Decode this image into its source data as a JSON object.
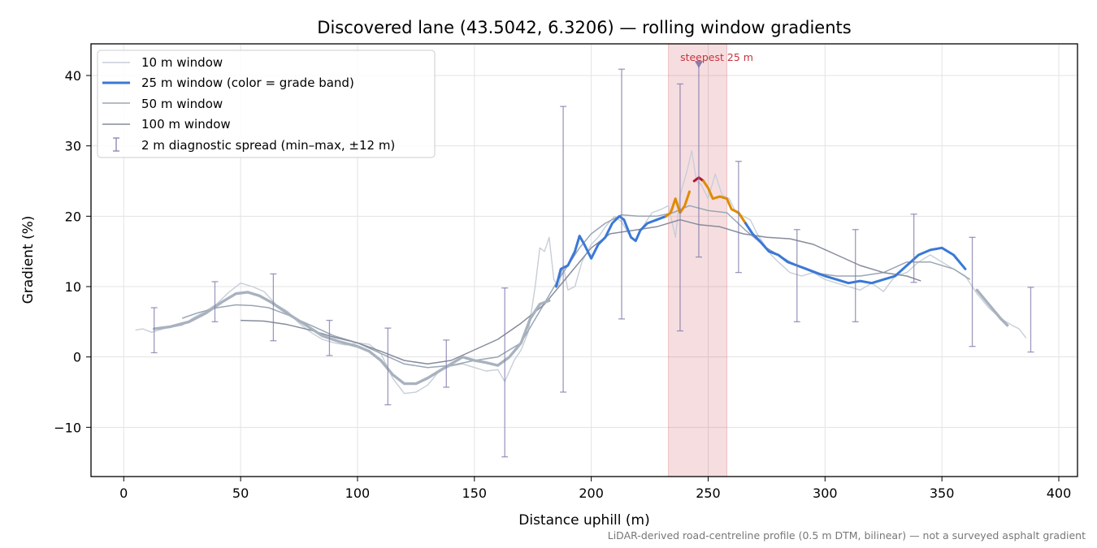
{
  "chart_data": {
    "type": "line",
    "title": "Discovered lane (43.5042, 6.3206) — rolling window gradients",
    "xlabel": "Distance uphill (m)",
    "ylabel": "Gradient (%)",
    "footnote": "LiDAR-derived road-centreline profile (0.5 m DTM, bilinear) — not a surveyed asphalt gradient",
    "xlim": [
      -14,
      408
    ],
    "ylim": [
      -17,
      44.5
    ],
    "x_ticks": [
      0,
      50,
      100,
      150,
      200,
      250,
      300,
      350,
      400
    ],
    "y_ticks": [
      -10,
      0,
      10,
      20,
      30,
      40
    ],
    "y_tick_labels": [
      "−10",
      "0",
      "10",
      "20",
      "30",
      "40"
    ],
    "grid": true,
    "legend_position": "top-left",
    "grade_band_colors": {
      "low": "#a8b2bf",
      "mid": "#3a78d6",
      "high": "#e08a00",
      "steep": "#b5172d"
    },
    "steepest": {
      "label": "steepest 25 m",
      "span": [
        233,
        258
      ],
      "x": 246,
      "y": 41.5,
      "color": "#c8323c"
    },
    "series": [
      {
        "name": "10 m window",
        "color": "#c7ced8",
        "points": [
          [
            5,
            3.8
          ],
          [
            8,
            4.0
          ],
          [
            12,
            3.5
          ],
          [
            18,
            4.1
          ],
          [
            25,
            4.5
          ],
          [
            30,
            5.6
          ],
          [
            35,
            6.5
          ],
          [
            40,
            7.6
          ],
          [
            45,
            9.2
          ],
          [
            50,
            10.5
          ],
          [
            55,
            10.0
          ],
          [
            60,
            9.3
          ],
          [
            65,
            7.5
          ],
          [
            70,
            6.5
          ],
          [
            75,
            4.8
          ],
          [
            80,
            3.5
          ],
          [
            85,
            2.5
          ],
          [
            90,
            2.0
          ],
          [
            95,
            1.7
          ],
          [
            100,
            2.0
          ],
          [
            105,
            1.8
          ],
          [
            110,
            0.5
          ],
          [
            115,
            -3.0
          ],
          [
            120,
            -5.2
          ],
          [
            125,
            -5.0
          ],
          [
            130,
            -4.0
          ],
          [
            135,
            -2.0
          ],
          [
            140,
            -1.3
          ],
          [
            145,
            -1.0
          ],
          [
            150,
            -1.5
          ],
          [
            155,
            -2.0
          ],
          [
            160,
            -1.8
          ],
          [
            163,
            -3.5
          ],
          [
            167,
            -0.5
          ],
          [
            170,
            1.0
          ],
          [
            173,
            3.5
          ],
          [
            176,
            10.0
          ],
          [
            178,
            15.5
          ],
          [
            180,
            15.0
          ],
          [
            182,
            17.0
          ],
          [
            184,
            11.0
          ],
          [
            186,
            10.0
          ],
          [
            188,
            13.0
          ],
          [
            190,
            9.5
          ],
          [
            193,
            10.0
          ],
          [
            196,
            13.5
          ],
          [
            200,
            16.0
          ],
          [
            203,
            17.0
          ],
          [
            206,
            18.5
          ],
          [
            210,
            20.0
          ],
          [
            213,
            19.2
          ],
          [
            216,
            17.5
          ],
          [
            219,
            16.5
          ],
          [
            222,
            18.5
          ],
          [
            226,
            20.5
          ],
          [
            230,
            21.0
          ],
          [
            233,
            21.5
          ],
          [
            236,
            17.0
          ],
          [
            238,
            23.0
          ],
          [
            241,
            26.5
          ],
          [
            243,
            29.3
          ],
          [
            245,
            25.0
          ],
          [
            247,
            24.5
          ],
          [
            250,
            22.5
          ],
          [
            253,
            26.0
          ],
          [
            256,
            23.0
          ],
          [
            259,
            22.5
          ],
          [
            262,
            20.5
          ],
          [
            265,
            20.0
          ],
          [
            268,
            19.5
          ],
          [
            271,
            17.5
          ],
          [
            274,
            16.0
          ],
          [
            277,
            14.5
          ],
          [
            280,
            13.5
          ],
          [
            285,
            12.0
          ],
          [
            290,
            11.5
          ],
          [
            295,
            12.0
          ],
          [
            300,
            11.0
          ],
          [
            305,
            10.5
          ],
          [
            310,
            10.0
          ],
          [
            315,
            9.5
          ],
          [
            320,
            10.5
          ],
          [
            325,
            9.3
          ],
          [
            330,
            11.5
          ],
          [
            335,
            12.0
          ],
          [
            340,
            13.5
          ],
          [
            345,
            14.5
          ],
          [
            350,
            13.5
          ],
          [
            355,
            12.5
          ],
          [
            360,
            11.5
          ],
          [
            365,
            9.0
          ],
          [
            370,
            7.0
          ],
          [
            375,
            5.5
          ],
          [
            380,
            4.5
          ],
          [
            383,
            4.0
          ],
          [
            386,
            2.7
          ]
        ]
      },
      {
        "name": "25 m window (color = grade band)",
        "color": "#3a78d6",
        "points": [
          [
            13,
            4.0
          ],
          [
            20,
            4.3
          ],
          [
            28,
            5.0
          ],
          [
            35,
            6.2
          ],
          [
            42,
            7.8
          ],
          [
            48,
            9.0
          ],
          [
            53,
            9.2
          ],
          [
            58,
            8.7
          ],
          [
            63,
            7.8
          ],
          [
            70,
            6.2
          ],
          [
            78,
            4.5
          ],
          [
            85,
            3.0
          ],
          [
            92,
            2.2
          ],
          [
            100,
            1.5
          ],
          [
            105,
            0.8
          ],
          [
            110,
            -0.5
          ],
          [
            115,
            -2.5
          ],
          [
            120,
            -3.8
          ],
          [
            125,
            -3.8
          ],
          [
            130,
            -3.0
          ],
          [
            135,
            -2.0
          ],
          [
            140,
            -1.0
          ],
          [
            145,
            0.0
          ],
          [
            150,
            -0.5
          ],
          [
            155,
            -0.8
          ],
          [
            160,
            -1.2
          ],
          [
            165,
            0.0
          ],
          [
            170,
            2.0
          ],
          [
            174,
            5.5
          ],
          [
            178,
            7.5
          ],
          [
            182,
            8.0
          ],
          [
            185,
            10.0
          ],
          [
            187,
            12.5
          ],
          [
            190,
            13.0
          ],
          [
            193,
            15.0
          ],
          [
            195,
            17.2
          ],
          [
            197,
            16.0
          ],
          [
            200,
            14.0
          ],
          [
            203,
            16.0
          ],
          [
            206,
            17.0
          ],
          [
            209,
            19.0
          ],
          [
            212,
            20.0
          ],
          [
            214,
            19.5
          ],
          [
            217,
            17.0
          ],
          [
            219,
            16.5
          ],
          [
            221,
            18.0
          ],
          [
            224,
            19.0
          ],
          [
            228,
            19.5
          ],
          [
            232,
            20.0
          ],
          [
            234,
            20.5
          ],
          [
            236,
            22.5
          ],
          [
            238,
            20.5
          ],
          [
            240,
            21.5
          ],
          [
            242,
            23.5
          ],
          [
            244,
            25.0
          ],
          [
            246,
            25.5
          ],
          [
            248,
            25.0
          ],
          [
            250,
            24.0
          ],
          [
            252,
            22.5
          ],
          [
            255,
            22.8
          ],
          [
            258,
            22.5
          ],
          [
            260,
            21.0
          ],
          [
            263,
            20.5
          ],
          [
            266,
            19.0
          ],
          [
            269,
            17.5
          ],
          [
            272,
            16.5
          ],
          [
            276,
            15.0
          ],
          [
            280,
            14.5
          ],
          [
            284,
            13.5
          ],
          [
            288,
            13.0
          ],
          [
            292,
            12.5
          ],
          [
            296,
            12.0
          ],
          [
            300,
            11.5
          ],
          [
            305,
            11.0
          ],
          [
            310,
            10.5
          ],
          [
            315,
            10.8
          ],
          [
            320,
            10.5
          ],
          [
            325,
            11.0
          ],
          [
            330,
            11.5
          ],
          [
            335,
            13.0
          ],
          [
            340,
            14.5
          ],
          [
            345,
            15.2
          ],
          [
            350,
            15.5
          ],
          [
            355,
            14.5
          ],
          [
            360,
            12.5
          ],
          [
            365,
            9.5
          ],
          [
            370,
            7.5
          ],
          [
            375,
            5.5
          ],
          [
            378,
            4.5
          ]
        ],
        "bands": [
          {
            "band": "low",
            "from": 13,
            "to": 184
          },
          {
            "band": "mid",
            "from": 184,
            "to": 232
          },
          {
            "band": "high",
            "from": 232,
            "to": 243
          },
          {
            "band": "steep",
            "from": 243,
            "to": 248
          },
          {
            "band": "high",
            "from": 248,
            "to": 266
          },
          {
            "band": "mid",
            "from": 266,
            "to": 362
          },
          {
            "band": "low",
            "from": 362,
            "to": 378
          }
        ]
      },
      {
        "name": "50 m window",
        "color": "#9aa6b5",
        "points": [
          [
            25,
            5.5
          ],
          [
            32,
            6.3
          ],
          [
            40,
            7.0
          ],
          [
            48,
            7.4
          ],
          [
            55,
            7.3
          ],
          [
            62,
            7.0
          ],
          [
            70,
            6.0
          ],
          [
            80,
            4.5
          ],
          [
            90,
            3.0
          ],
          [
            100,
            2.0
          ],
          [
            110,
            0.5
          ],
          [
            120,
            -1.0
          ],
          [
            130,
            -1.5
          ],
          [
            140,
            -1.2
          ],
          [
            150,
            -0.5
          ],
          [
            160,
            0.0
          ],
          [
            170,
            2.0
          ],
          [
            178,
            6.5
          ],
          [
            185,
            10.5
          ],
          [
            190,
            13.0
          ],
          [
            195,
            15.5
          ],
          [
            200,
            17.5
          ],
          [
            206,
            19.0
          ],
          [
            213,
            20.2
          ],
          [
            220,
            20.0
          ],
          [
            228,
            20.0
          ],
          [
            235,
            20.5
          ],
          [
            242,
            21.5
          ],
          [
            250,
            20.8
          ],
          [
            258,
            20.5
          ],
          [
            266,
            18.0
          ],
          [
            275,
            15.5
          ],
          [
            285,
            13.5
          ],
          [
            295,
            12.0
          ],
          [
            305,
            11.5
          ],
          [
            315,
            11.5
          ],
          [
            325,
            12.0
          ],
          [
            335,
            13.5
          ],
          [
            345,
            13.5
          ],
          [
            355,
            12.5
          ],
          [
            362,
            11.0
          ]
        ]
      },
      {
        "name": "100 m window",
        "color": "#858c9b",
        "points": [
          [
            50,
            5.2
          ],
          [
            60,
            5.1
          ],
          [
            70,
            4.6
          ],
          [
            80,
            3.8
          ],
          [
            90,
            2.8
          ],
          [
            100,
            2.0
          ],
          [
            110,
            0.8
          ],
          [
            120,
            -0.5
          ],
          [
            130,
            -1.0
          ],
          [
            140,
            -0.5
          ],
          [
            150,
            1.0
          ],
          [
            160,
            2.5
          ],
          [
            170,
            4.8
          ],
          [
            180,
            7.5
          ],
          [
            190,
            11.5
          ],
          [
            200,
            15.5
          ],
          [
            208,
            17.5
          ],
          [
            218,
            18.0
          ],
          [
            228,
            18.5
          ],
          [
            238,
            19.5
          ],
          [
            246,
            18.8
          ],
          [
            255,
            18.5
          ],
          [
            265,
            17.5
          ],
          [
            275,
            17.0
          ],
          [
            285,
            16.8
          ],
          [
            295,
            16.0
          ],
          [
            305,
            14.5
          ],
          [
            315,
            13.0
          ],
          [
            325,
            12.0
          ],
          [
            335,
            11.5
          ],
          [
            341,
            10.8
          ]
        ]
      }
    ],
    "diagnostic_spread": {
      "name": "2 m diagnostic spread (min–max, ±12 m)",
      "color": "#7d78a8",
      "bars": [
        [
          13,
          0.6,
          7.0
        ],
        [
          39,
          5.0,
          10.7
        ],
        [
          64,
          2.3,
          11.8
        ],
        [
          88,
          0.2,
          5.2
        ],
        [
          113,
          -6.8,
          4.1
        ],
        [
          138,
          -4.3,
          2.4
        ],
        [
          163,
          -14.2,
          9.8
        ],
        [
          188,
          -5.0,
          35.6
        ],
        [
          213,
          5.4,
          40.9
        ],
        [
          238,
          3.7,
          38.8
        ],
        [
          246,
          14.2,
          41.8
        ],
        [
          263,
          12.0,
          27.8
        ],
        [
          288,
          5.0,
          18.1
        ],
        [
          313,
          5.0,
          18.1
        ],
        [
          338,
          10.6,
          20.3
        ],
        [
          363,
          1.5,
          17.0
        ],
        [
          388,
          0.7,
          9.9
        ]
      ]
    }
  }
}
